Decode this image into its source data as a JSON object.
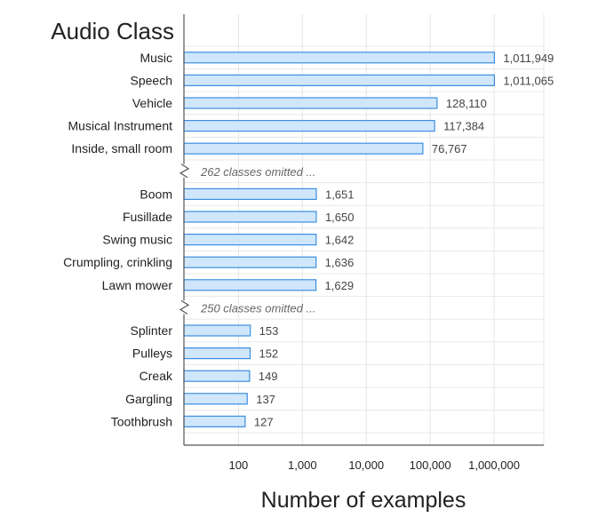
{
  "chart_data": {
    "type": "bar",
    "orientation": "horizontal",
    "title": "Audio Class",
    "xlabel": "Number of examples",
    "x_scale": "log",
    "xlim": [
      14,
      6000000
    ],
    "xticks": [
      100,
      1000,
      10000,
      100000,
      1000000
    ],
    "xtick_labels": [
      "100",
      "1,000",
      "10,000",
      "100,000",
      "1,000,000"
    ],
    "grid": true,
    "bar_color": "#cfe6fb",
    "bar_edge_color": "#3d8fe0",
    "rows": [
      {
        "kind": "bar",
        "category": "Music",
        "value": 1011949,
        "label": "1,011,949"
      },
      {
        "kind": "bar",
        "category": "Speech",
        "value": 1011065,
        "label": "1,011,065"
      },
      {
        "kind": "bar",
        "category": "Vehicle",
        "value": 128110,
        "label": "128,110"
      },
      {
        "kind": "bar",
        "category": "Musical Instrument",
        "value": 117384,
        "label": "117,384"
      },
      {
        "kind": "bar",
        "category": "Inside, small room",
        "value": 76767,
        "label": "76,767"
      },
      {
        "kind": "gap",
        "text": "262 classes omitted ..."
      },
      {
        "kind": "bar",
        "category": "Boom",
        "value": 1651,
        "label": "1,651"
      },
      {
        "kind": "bar",
        "category": "Fusillade",
        "value": 1650,
        "label": "1,650"
      },
      {
        "kind": "bar",
        "category": "Swing music",
        "value": 1642,
        "label": "1,642"
      },
      {
        "kind": "bar",
        "category": "Crumpling, crinkling",
        "value": 1636,
        "label": "1,636"
      },
      {
        "kind": "bar",
        "category": "Lawn mower",
        "value": 1629,
        "label": "1,629"
      },
      {
        "kind": "gap",
        "text": "250 classes omitted ..."
      },
      {
        "kind": "bar",
        "category": "Splinter",
        "value": 153,
        "label": "153"
      },
      {
        "kind": "bar",
        "category": "Pulleys",
        "value": 152,
        "label": "152"
      },
      {
        "kind": "bar",
        "category": "Creak",
        "value": 149,
        "label": "149"
      },
      {
        "kind": "bar",
        "category": "Gargling",
        "value": 137,
        "label": "137"
      },
      {
        "kind": "bar",
        "category": "Toothbrush",
        "value": 127,
        "label": "127"
      }
    ]
  }
}
